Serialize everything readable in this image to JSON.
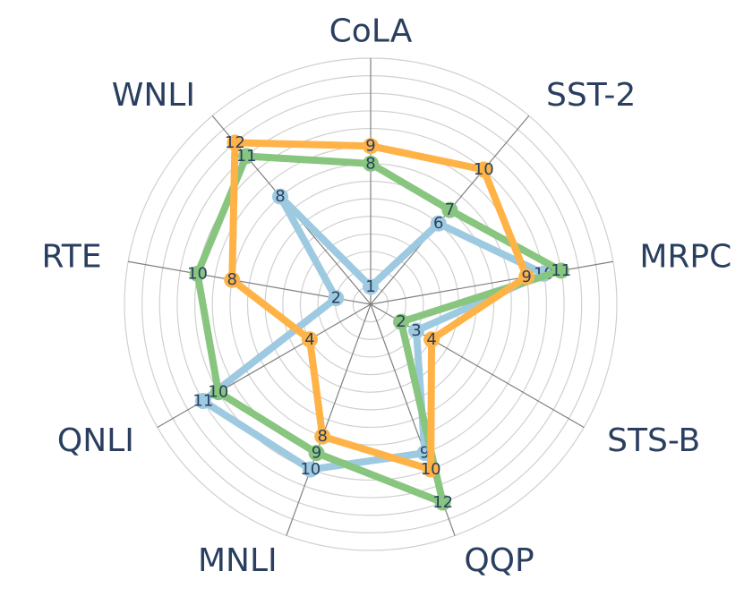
{
  "chart_data": {
    "type": "radar",
    "axes": [
      "CoLA",
      "SST-2",
      "MRPC",
      "STS-B",
      "QQP",
      "MNLI",
      "QNLI",
      "RTE",
      "WNLI"
    ],
    "rmax": 14,
    "grid": true,
    "series": [
      {
        "color": "#9ecae1",
        "values": [
          1,
          6,
          10,
          3,
          9,
          10,
          11,
          2,
          8
        ]
      },
      {
        "color": "#88c57f",
        "values": [
          8,
          7,
          11,
          2,
          12,
          9,
          10,
          10,
          11
        ]
      },
      {
        "color": "#ffb347",
        "values": [
          9,
          10,
          9,
          4,
          10,
          8,
          4,
          8,
          12
        ]
      }
    ]
  }
}
